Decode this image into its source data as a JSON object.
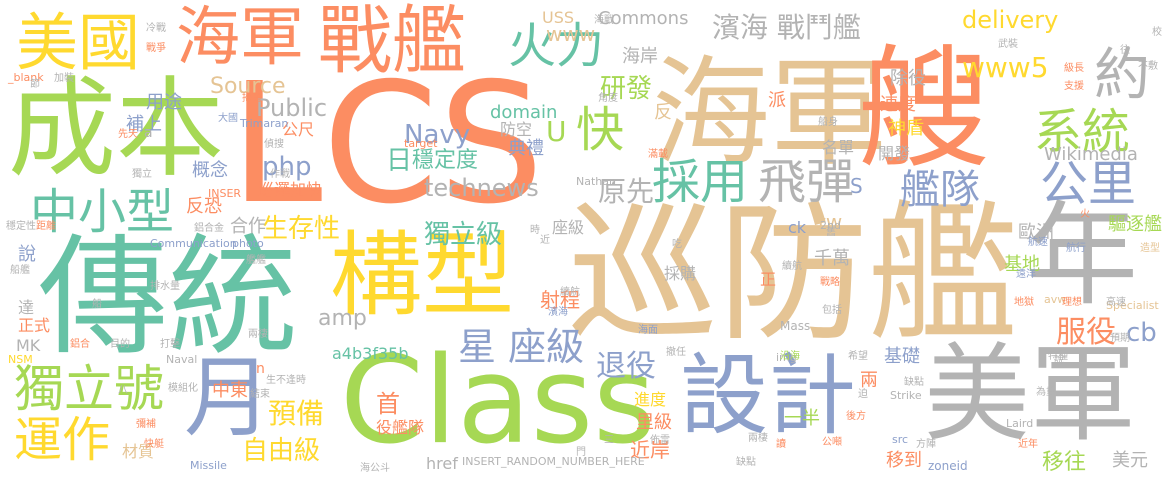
{
  "words": [
    {
      "text": "LCS",
      "color": "#fc8d62"
    },
    {
      "text": "巡防艦",
      "color": "#e5c494"
    },
    {
      "text": "傳統",
      "color": "#66c2a5"
    },
    {
      "text": "成本",
      "color": "#a6d854"
    },
    {
      "text": "Class",
      "color": "#a6d854"
    },
    {
      "text": "海軍",
      "color": "#e5c494"
    },
    {
      "text": "艘",
      "color": "#fc8d62"
    },
    {
      "text": "構型",
      "color": "#ffd92f"
    },
    {
      "text": "美軍",
      "color": "#b3b3b3"
    },
    {
      "text": "設計",
      "color": "#8da0cb"
    },
    {
      "text": "年",
      "color": "#b3b3b3"
    },
    {
      "text": "月",
      "color": "#8da0cb"
    },
    {
      "text": "戰艦",
      "color": "#fc8d62"
    },
    {
      "text": "美國",
      "color": "#ffd92f"
    },
    {
      "text": "海軍",
      "color": "#fc8d62"
    },
    {
      "text": "中小型",
      "color": "#66c2a5"
    },
    {
      "text": "獨立號",
      "color": "#a6d854"
    },
    {
      "text": "運作",
      "color": "#ffd92f"
    },
    {
      "text": "火力",
      "color": "#66c2a5"
    },
    {
      "text": "採用",
      "color": "#66c2a5"
    },
    {
      "text": "飛彈",
      "color": "#b3b3b3"
    },
    {
      "text": "艦隊",
      "color": "#8da0cb"
    },
    {
      "text": "公里",
      "color": "#8da0cb"
    },
    {
      "text": "系統",
      "color": "#a6d854"
    },
    {
      "text": "約",
      "color": "#b3b3b3"
    },
    {
      "text": "濱海 戰鬥艦",
      "color": "#b3b3b3"
    },
    {
      "text": "www5",
      "color": "#ffd92f"
    },
    {
      "text": "delivery",
      "color": "#ffd92f"
    },
    {
      "text": "快",
      "color": "#a6d854"
    },
    {
      "text": "研發",
      "color": "#a6d854"
    },
    {
      "text": "星 座級",
      "color": "#8da0cb"
    },
    {
      "text": "退役",
      "color": "#8da0cb"
    },
    {
      "text": "服役",
      "color": "#fc8d62"
    },
    {
      "text": "獨立級",
      "color": "#66c2a5"
    },
    {
      "text": "生存性",
      "color": "#ffd92f"
    },
    {
      "text": "預備",
      "color": "#ffd92f"
    },
    {
      "text": "自由級",
      "color": "#ffd92f"
    },
    {
      "text": "technews",
      "color": "#b3b3b3"
    },
    {
      "text": "原先",
      "color": "#b3b3b3"
    },
    {
      "text": "Navy",
      "color": "#8da0cb"
    },
    {
      "text": "php",
      "color": "#8da0cb"
    },
    {
      "text": "Public",
      "color": "#b3b3b3"
    },
    {
      "text": "Source",
      "color": "#e5c494"
    },
    {
      "text": "domain",
      "color": "#66c2a5"
    },
    {
      "text": "www",
      "color": "#e5c494"
    },
    {
      "text": "USS",
      "color": "#e5c494"
    },
    {
      "text": "Commons",
      "color": "#b3b3b3"
    },
    {
      "text": "Wikimedia",
      "color": "#b3b3b3"
    },
    {
      "text": "amp",
      "color": "#b3b3b3"
    },
    {
      "text": "cb",
      "color": "#8da0cb"
    },
    {
      "text": "a4b3f35b",
      "color": "#66c2a5"
    },
    {
      "text": "首",
      "color": "#fc8d62"
    },
    {
      "text": "射程",
      "color": "#fc8d62"
    },
    {
      "text": "千萬",
      "color": "#b3b3b3"
    },
    {
      "text": "基地",
      "color": "#a6d854"
    },
    {
      "text": "驅逐艦",
      "color": "#a6d854"
    },
    {
      "text": "歐洲",
      "color": "#b3b3b3"
    },
    {
      "text": "移往",
      "color": "#a6d854"
    },
    {
      "text": "美元",
      "color": "#b3b3b3"
    },
    {
      "text": "移到",
      "color": "#fc8d62"
    },
    {
      "text": "近岸",
      "color": "#fc8d62"
    },
    {
      "text": "里級",
      "color": "#fc8d62"
    },
    {
      "text": "進度",
      "color": "#ffd92f"
    },
    {
      "text": "基礎",
      "color": "#8da0cb"
    },
    {
      "text": "兩",
      "color": "#fc8d62"
    },
    {
      "text": "一半",
      "color": "#a6d854"
    },
    {
      "text": "開發",
      "color": "#b3b3b3"
    },
    {
      "text": "神盾",
      "color": "#ffd92f"
    },
    {
      "text": "速度",
      "color": "#fc8d62"
    },
    {
      "text": "除役",
      "color": "#b3b3b3"
    },
    {
      "text": "名單",
      "color": "#b3b3b3"
    },
    {
      "text": "穩定度",
      "color": "#66c2a5"
    },
    {
      "text": "典禮",
      "color": "#8da0cb"
    },
    {
      "text": "防空",
      "color": "#b3b3b3"
    },
    {
      "text": "U",
      "color": "#a6d854"
    },
    {
      "text": "日",
      "color": "#66c2a5"
    },
    {
      "text": "反恐",
      "color": "#fc8d62"
    },
    {
      "text": "概念",
      "color": "#8da0cb"
    },
    {
      "text": "合作",
      "color": "#b3b3b3"
    },
    {
      "text": "巡邏",
      "color": "#fc8d62"
    },
    {
      "text": "加快",
      "color": "#fc8d62"
    },
    {
      "text": "公尺",
      "color": "#fc8d62"
    },
    {
      "text": "補上",
      "color": "#8da0cb"
    },
    {
      "text": "用途",
      "color": "#8da0cb"
    },
    {
      "text": "海岸",
      "color": "#b3b3b3"
    },
    {
      "text": "派",
      "color": "#fc8d62"
    },
    {
      "text": "反",
      "color": "#e5c494"
    },
    {
      "text": "座級",
      "color": "#b3b3b3"
    },
    {
      "text": "採購",
      "color": "#b3b3b3"
    },
    {
      "text": "說",
      "color": "#8da0cb"
    },
    {
      "text": "達",
      "color": "#b3b3b3"
    },
    {
      "text": "正式",
      "color": "#fc8d62"
    },
    {
      "text": "MK",
      "color": "#b3b3b3"
    },
    {
      "text": "中東",
      "color": "#fc8d62"
    },
    {
      "text": "材質",
      "color": "#e5c494"
    },
    {
      "text": "役艦隊",
      "color": "#fc8d62"
    },
    {
      "text": "href",
      "color": "#b3b3b3"
    },
    {
      "text": "INSERT_RANDOM_NUMBER_HERE",
      "color": "#b3b3b3"
    },
    {
      "text": "tw",
      "color": "#e5c494"
    },
    {
      "text": "S",
      "color": "#8da0cb"
    },
    {
      "text": "ck",
      "color": "#8da0cb"
    },
    {
      "text": "n",
      "color": "#fc8d62"
    },
    {
      "text": "a",
      "color": "#b3b3b3"
    },
    {
      "text": "正",
      "color": "#fc8d62"
    },
    {
      "text": "Mass",
      "color": "#b3b3b3"
    },
    {
      "text": "Laird",
      "color": "#b3b3b3"
    },
    {
      "text": "zoneid",
      "color": "#8da0cb"
    },
    {
      "text": "Missile",
      "color": "#8da0cb"
    },
    {
      "text": "Specialist",
      "color": "#e5c494"
    },
    {
      "text": "Strike",
      "color": "#b3b3b3"
    },
    {
      "text": "img",
      "color": "#b3b3b3"
    },
    {
      "text": "src",
      "color": "#8da0cb"
    },
    {
      "text": "NSM",
      "color": "#ffd92f"
    },
    {
      "text": "Naval",
      "color": "#b3b3b3"
    },
    {
      "text": "target",
      "color": "#fc8d62"
    },
    {
      "text": "Nathan",
      "color": "#b3b3b3"
    },
    {
      "text": "Trimaran",
      "color": "#8da0cb"
    },
    {
      "text": "Communication",
      "color": "#8da0cb"
    },
    {
      "text": "photo",
      "color": "#8da0cb"
    },
    {
      "text": "_blank",
      "color": "#fc8d62"
    },
    {
      "text": "2nd",
      "color": "#b3b3b3"
    },
    {
      "text": "INSER",
      "color": "#fc8d62"
    },
    {
      "text": "avw",
      "color": "#e5c494"
    },
    {
      "text": "冷戰",
      "color": "#b3b3b3"
    },
    {
      "text": "海戰",
      "color": "#b3b3b3"
    },
    {
      "text": "戰爭",
      "color": "#fc8d62"
    },
    {
      "text": "節",
      "color": "#b3b3b3"
    },
    {
      "text": "加裝",
      "color": "#b3b3b3"
    },
    {
      "text": "大國",
      "color": "#8da0cb"
    },
    {
      "text": "先天",
      "color": "#fc8d62"
    },
    {
      "text": "掃雷",
      "color": "#fc8d62"
    },
    {
      "text": "角度",
      "color": "#b3b3b3"
    },
    {
      "text": "武裝",
      "color": "#b3b3b3"
    },
    {
      "text": "級長",
      "color": "#fc8d62"
    },
    {
      "text": "不敷",
      "color": "#b3b3b3"
    },
    {
      "text": "支援",
      "color": "#fc8d62"
    },
    {
      "text": "船身",
      "color": "#b3b3b3"
    },
    {
      "text": "滿載",
      "color": "#fc8d62"
    },
    {
      "text": "偵搜",
      "color": "#b3b3b3"
    },
    {
      "text": "作戰",
      "color": "#b3b3b3"
    },
    {
      "text": "獨立",
      "color": "#b3b3b3"
    },
    {
      "text": "鋁合金",
      "color": "#b3b3b3"
    },
    {
      "text": "艦艦",
      "color": "#b3b3b3"
    },
    {
      "text": "距離",
      "color": "#fc8d62"
    },
    {
      "text": "穩定性",
      "color": "#b3b3b3"
    },
    {
      "text": "船艦",
      "color": "#b3b3b3"
    },
    {
      "text": "排水量",
      "color": "#b3b3b3"
    },
    {
      "text": "航速",
      "color": "#8da0cb"
    },
    {
      "text": "航行",
      "color": "#8da0cb"
    },
    {
      "text": "續航",
      "color": "#b3b3b3"
    },
    {
      "text": "遠洋",
      "color": "#8da0cb"
    },
    {
      "text": "沿海",
      "color": "#a6d854"
    },
    {
      "text": "地獄",
      "color": "#fc8d62"
    },
    {
      "text": "理想",
      "color": "#fc8d62"
    },
    {
      "text": "高速",
      "color": "#b3b3b3"
    },
    {
      "text": "造型",
      "color": "#e5c494"
    },
    {
      "text": "預期",
      "color": "#b3b3b3"
    },
    {
      "text": "特種",
      "color": "#b3b3b3"
    },
    {
      "text": "希望",
      "color": "#b3b3b3"
    },
    {
      "text": "佈雷",
      "color": "#b3b3b3"
    },
    {
      "text": "方陣",
      "color": "#b3b3b3"
    },
    {
      "text": "為重",
      "color": "#b3b3b3"
    },
    {
      "text": "近年",
      "color": "#fc8d62"
    },
    {
      "text": "公噸",
      "color": "#fc8d62"
    },
    {
      "text": "海公斗",
      "color": "#b3b3b3"
    },
    {
      "text": "快艇",
      "color": "#fc8d62"
    },
    {
      "text": "模組化",
      "color": "#b3b3b3"
    },
    {
      "text": "打擊",
      "color": "#b3b3b3"
    },
    {
      "text": "結束",
      "color": "#b3b3b3"
    },
    {
      "text": "生不逢時",
      "color": "#b3b3b3"
    },
    {
      "text": "兩棲",
      "color": "#b3b3b3"
    },
    {
      "text": "彌補",
      "color": "#fc8d62"
    },
    {
      "text": "目的",
      "color": "#b3b3b3"
    },
    {
      "text": "鋁合",
      "color": "#fc8d62"
    },
    {
      "text": "八",
      "color": "#b3b3b3"
    },
    {
      "text": "缺點",
      "color": "#b3b3b3"
    },
    {
      "text": "海面",
      "color": "#8da0cb"
    },
    {
      "text": "撤任",
      "color": "#b3b3b3"
    },
    {
      "text": "後方",
      "color": "#fc8d62"
    },
    {
      "text": "戰略",
      "color": "#fc8d62"
    },
    {
      "text": "包括",
      "color": "#b3b3b3"
    },
    {
      "text": "門",
      "color": "#b3b3b3"
    },
    {
      "text": "時",
      "color": "#b3b3b3"
    },
    {
      "text": "近",
      "color": "#b3b3b3"
    },
    {
      "text": "火",
      "color": "#fc8d62"
    },
    {
      "text": "往",
      "color": "#b3b3b3"
    },
    {
      "text": "校",
      "color": "#b3b3b3"
    },
    {
      "text": "讀",
      "color": "#fc8d62"
    },
    {
      "text": "三",
      "color": "#b3b3b3"
    },
    {
      "text": "船",
      "color": "#b3b3b3"
    },
    {
      "text": "說",
      "color": "#b3b3b3"
    },
    {
      "text": "舊",
      "color": "#b3b3b3"
    },
    {
      "text": "迫",
      "color": "#b3b3b3"
    },
    {
      "text": "吃",
      "color": "#b3b3b3"
    },
    {
      "text": "續航",
      "color": "#b3b3b3"
    },
    {
      "text": "濱海",
      "color": "#8da0cb"
    },
    {
      "text": "兩棲",
      "color": "#b3b3b3"
    },
    {
      "text": "缺點",
      "color": "#b3b3b3"
    },
    {
      "text": "加速",
      "color": "#b3b3b3"
    },
    {
      "text": "宜",
      "color": "#fc8d62"
    },
    {
      "text": "地",
      "color": "#b3b3b3"
    }
  ]
}
